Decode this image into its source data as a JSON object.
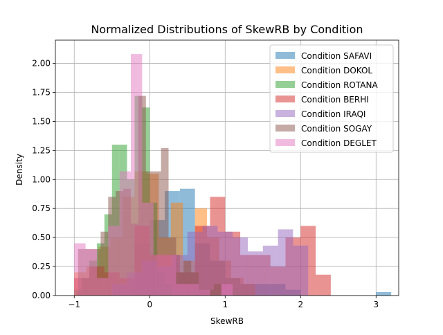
{
  "chart_data": {
    "type": "histogram",
    "title": "Normalized Distributions of SkewRB by Condition",
    "xlabel": "SkewRB",
    "ylabel": "Density",
    "xlim": [
      -1.25,
      3.3
    ],
    "ylim": [
      0,
      2.2
    ],
    "x_ticks": [
      -1,
      0,
      1,
      2,
      3
    ],
    "y_ticks": [
      0.0,
      0.25,
      0.5,
      0.75,
      1.0,
      1.25,
      1.5,
      1.75,
      2.0
    ],
    "x_tick_labels": [
      "−1",
      "0",
      "1",
      "2",
      "3"
    ],
    "y_tick_labels": [
      "0.00",
      "0.25",
      "0.50",
      "0.75",
      "1.00",
      "1.25",
      "1.50",
      "1.75",
      "2.00"
    ],
    "grid": true,
    "legend_position": "top-right",
    "series": [
      {
        "name": "Condition SAFAVI",
        "color": "#1f77b4",
        "bin_start": -0.2,
        "bin_width": 0.2,
        "values": [
          0.45,
          0.65,
          0.9,
          0.92,
          0.45,
          0.3,
          0.15,
          0.1,
          0.1,
          0.1,
          0.05,
          0.0,
          0.0,
          0.0,
          0.0,
          0.0,
          0.03
        ]
      },
      {
        "name": "Condition DOKOL",
        "color": "#ff7f0e",
        "bin_start": -1.0,
        "bin_width": 0.16,
        "values": [
          0.2,
          0.25,
          0.42,
          0.5,
          0.85,
          1.07,
          1.05,
          0.5,
          0.8,
          0.3,
          0.75,
          0.5,
          0.3,
          0.15,
          0.1
        ]
      },
      {
        "name": "Condition ROTANA",
        "color": "#2ca02c",
        "bin_start": -1.0,
        "bin_width": 0.1,
        "values": [
          0.05,
          0.15,
          0.3,
          0.45,
          0.7,
          1.3,
          1.3,
          1.0,
          1.72,
          1.62,
          0.8,
          0.2,
          0.1
        ]
      },
      {
        "name": "Condition BERHI",
        "color": "#d62728",
        "bin_start": -1.0,
        "bin_width": 0.2,
        "values": [
          0.15,
          0.25,
          0.2,
          0.15,
          0.6,
          0.35,
          0.35,
          0.2,
          0.6,
          0.85,
          0.55,
          0.35,
          0.35,
          0.25,
          0.5,
          0.6,
          0.18
        ]
      },
      {
        "name": "Condition IRAQI",
        "color": "#9467bd",
        "bin_start": -0.5,
        "bin_width": 0.2,
        "values": [
          0.1,
          0.2,
          0.3,
          0.25,
          0.35,
          0.55,
          0.6,
          0.55,
          0.5,
          0.38,
          0.43,
          0.57,
          0.43
        ]
      },
      {
        "name": "Condition SOGAY",
        "color": "#8c564b",
        "bin_start": -0.95,
        "bin_width": 0.1,
        "values": [
          0.4,
          0.4,
          0.4,
          0.55,
          0.85,
          0.9,
          0.92,
          0.62,
          1.72,
          1.07,
          1.07,
          1.27,
          0.5,
          0.2,
          0.3,
          0.2,
          0.05,
          0.05,
          0.1
        ]
      },
      {
        "name": "Condition DEGLET",
        "color": "#e377c2",
        "bin_start": -1.0,
        "bin_width": 0.15,
        "values": [
          0.45,
          0.4,
          0.15,
          0.6,
          1.07,
          2.08,
          0.8,
          0.35,
          0.35,
          0.1,
          0.1,
          0.05,
          0.0,
          0.1
        ]
      }
    ]
  }
}
